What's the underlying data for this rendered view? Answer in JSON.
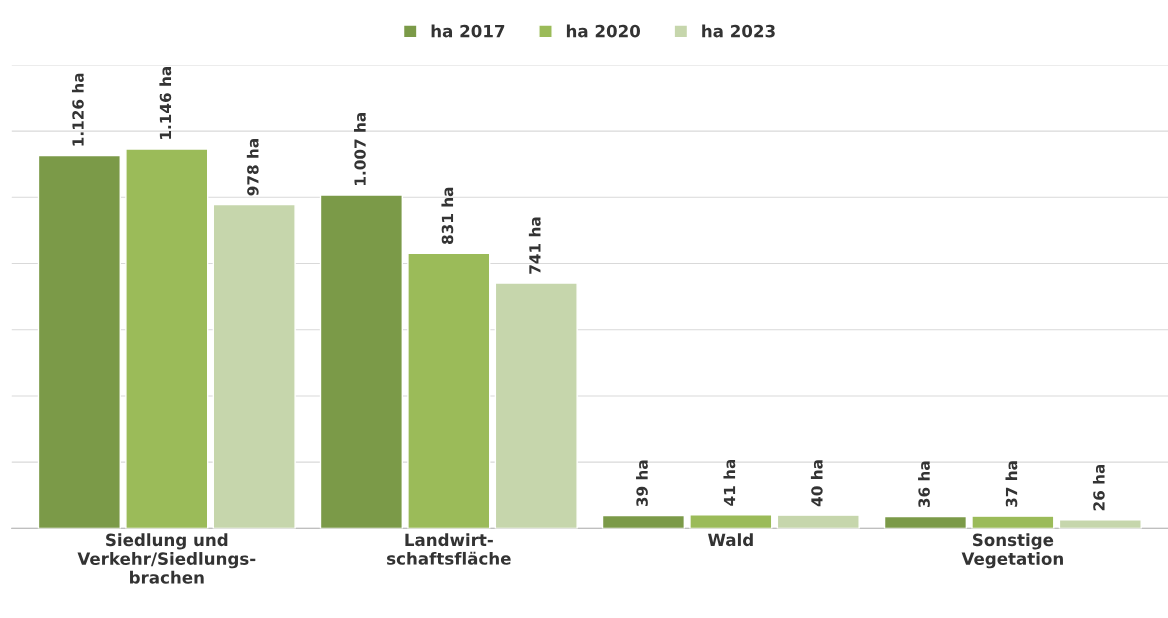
{
  "chart_data": {
    "type": "bar",
    "categories": [
      "Siedlung und\nVerkehr/Siedlungs-\nbrachen",
      "Landwirt-\nschaftsfläche",
      "Wald",
      "Sonstige\nVegetation"
    ],
    "series": [
      {
        "name": "ha 2017",
        "color": "#7b9a48",
        "values": [
          1126,
          1007,
          39,
          36
        ],
        "value_labels": [
          "1.126 ha",
          "1.007 ha",
          "39 ha",
          "36 ha"
        ]
      },
      {
        "name": "ha 2020",
        "color": "#9bbb59",
        "values": [
          1146,
          831,
          41,
          37
        ],
        "value_labels": [
          "1.146 ha",
          "831 ha",
          "41 ha",
          "37 ha"
        ]
      },
      {
        "name": "ha 2023",
        "color": "#c6d6ac",
        "values": [
          978,
          741,
          40,
          26
        ],
        "value_labels": [
          "978 ha",
          "741 ha",
          "40 ha",
          "26 ha"
        ]
      }
    ],
    "ylim": [
      0,
      1400
    ],
    "yticks": [
      {
        "value": 0,
        "label": null
      },
      {
        "value": 200,
        "label": null
      },
      {
        "value": 400,
        "label": null
      },
      {
        "value": 600,
        "label": null
      },
      {
        "value": 800,
        "label": null
      },
      {
        "value": 1000,
        "label": null
      },
      {
        "value": 1200,
        "label": null
      },
      {
        "value": 1400,
        "label": null
      }
    ],
    "tick_labels": "x",
    "grid": "y",
    "legend": "top"
  }
}
